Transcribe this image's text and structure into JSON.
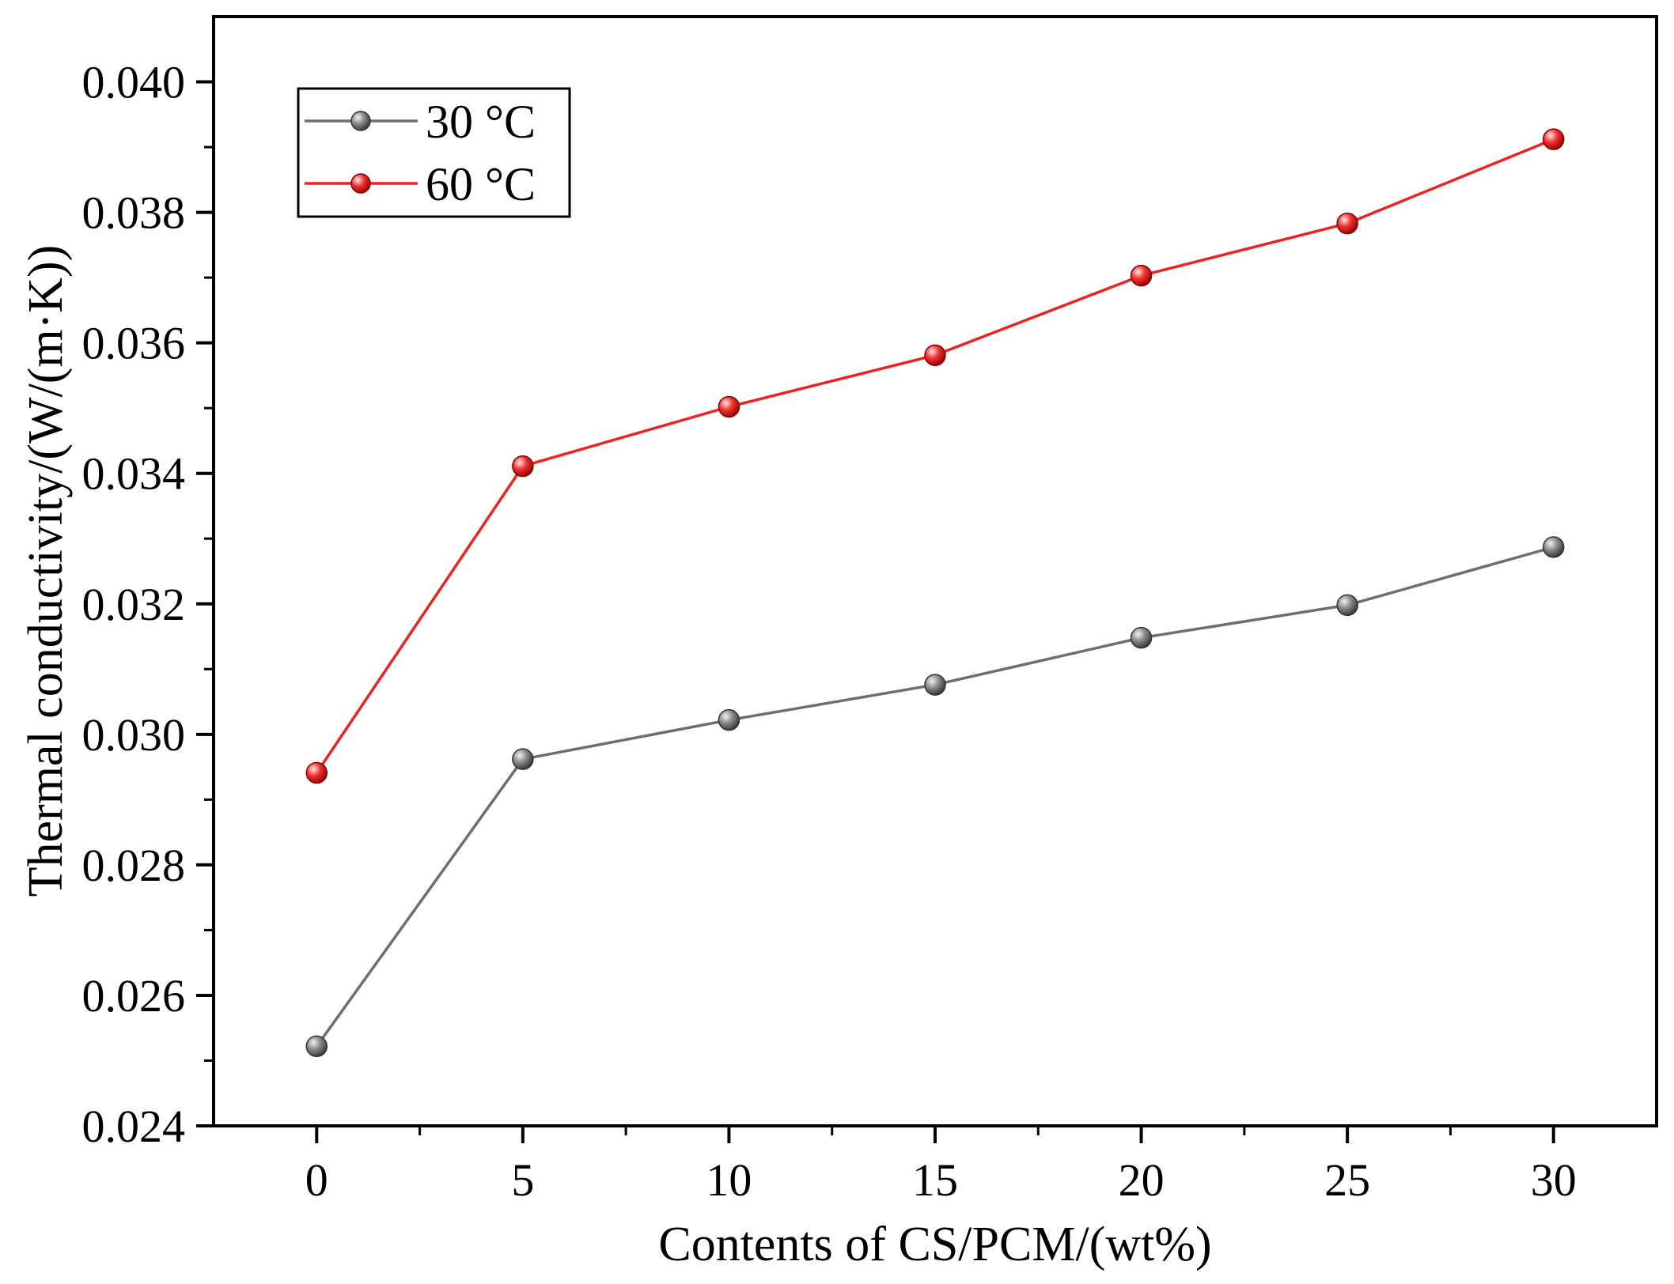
{
  "chart_data": {
    "type": "line",
    "title": "",
    "xlabel": "Contents of CS/PCM/(wt%)",
    "ylabel": "Thermal conductivity/(W/(m·K))",
    "x": [
      0,
      5,
      10,
      15,
      20,
      25,
      30
    ],
    "xlim": [
      -2.5,
      32.5
    ],
    "ylim": [
      0.024,
      0.041
    ],
    "x_ticks": [
      "0",
      "5",
      "10",
      "15",
      "20",
      "25",
      "30"
    ],
    "y_ticks": [
      "0.024",
      "0.026",
      "0.028",
      "0.030",
      "0.032",
      "0.034",
      "0.036",
      "0.038",
      "0.040"
    ],
    "grid": false,
    "legend_position": "top-left",
    "series": [
      {
        "name": "30 °C",
        "color": "#6e6e6e",
        "values": [
          0.02522,
          0.02962,
          0.03022,
          0.03076,
          0.03148,
          0.03198,
          0.03287
        ]
      },
      {
        "name": "60 °C",
        "color": "#ee2222",
        "values": [
          0.02941,
          0.03411,
          0.03502,
          0.03581,
          0.03703,
          0.03783,
          0.03912
        ]
      }
    ]
  }
}
